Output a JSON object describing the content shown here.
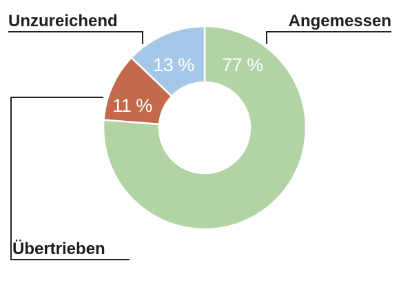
{
  "chart_data": {
    "type": "pie",
    "variant": "donut",
    "slices": [
      {
        "label": "Angemessen",
        "value": 77,
        "value_label": "77 %",
        "color": "#b2d3a3"
      },
      {
        "label": "Übertrieben",
        "value": 11,
        "value_label": "11 %",
        "color": "#c4694c"
      },
      {
        "label": "Unzureichend",
        "value": 13,
        "value_label": "13 %",
        "color": "#a6c8e8"
      }
    ]
  }
}
